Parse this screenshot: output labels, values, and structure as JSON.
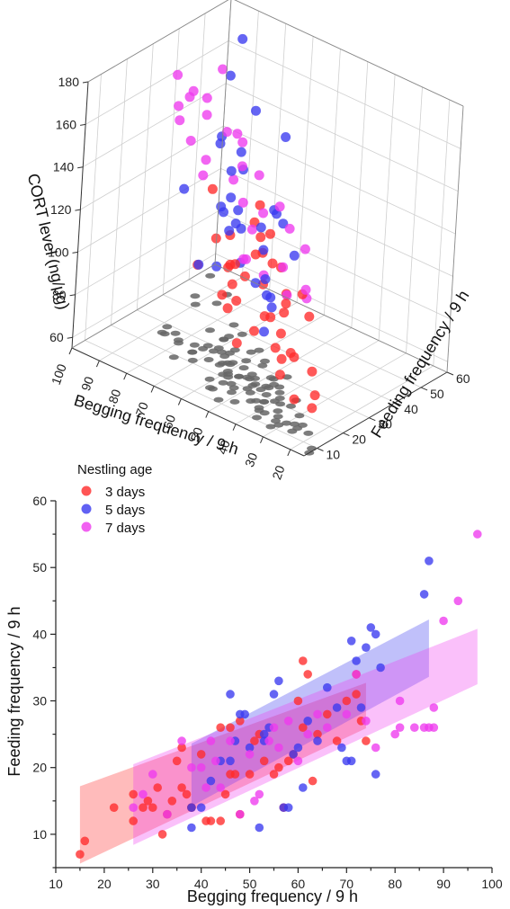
{
  "chart_data": [
    {
      "type": "scatter3d",
      "title": "",
      "xlabel": "Begging frequency / 9 h",
      "ylabel": "Feeding frequency / 9 h",
      "zlabel": "CORT level (ng/μg)",
      "xlim": [
        15,
        100
      ],
      "ylim": [
        5,
        60
      ],
      "zlim": [
        55,
        180
      ],
      "x_ticks": [
        "20",
        "30",
        "40",
        "50",
        "60",
        "70",
        "80",
        "90",
        "100"
      ],
      "y_ticks": [
        "10",
        "20",
        "30",
        "40",
        "50",
        "60"
      ],
      "z_ticks": [
        "60",
        "80",
        "100",
        "120",
        "140",
        "160",
        "180"
      ],
      "grid": true,
      "shadow_color": "#666666",
      "series": [
        {
          "name": "3 days",
          "color": "#ff2a2a",
          "points": [
            [
              15,
              7,
              76
            ],
            [
              16,
              9,
              80
            ],
            [
              22,
              14,
              84
            ],
            [
              26,
              12,
              70
            ],
            [
              30,
              14,
              88
            ],
            [
              32,
              10,
              92
            ],
            [
              33,
              13,
              96
            ],
            [
              35,
              21,
              78
            ],
            [
              38,
              14,
              100
            ],
            [
              40,
              22,
              104
            ],
            [
              44,
              26,
              90
            ],
            [
              46,
              26,
              110
            ],
            [
              48,
              19,
              84
            ],
            [
              52,
              25,
              114
            ],
            [
              55,
              19,
              94
            ],
            [
              58,
              21,
              108
            ],
            [
              60,
              30,
              120
            ],
            [
              61,
              36,
              86
            ],
            [
              62,
              34,
              124
            ],
            [
              64,
              25,
              100
            ],
            [
              66,
              28,
              98
            ],
            [
              68,
              24,
              112
            ],
            [
              70,
              30,
              80
            ],
            [
              72,
              34,
              104
            ],
            [
              73,
              27,
              130
            ],
            [
              74,
              24,
              96
            ],
            [
              26,
              16,
              106
            ],
            [
              36,
              17,
              72
            ],
            [
              42,
              18,
              120
            ],
            [
              50,
              20,
              118
            ],
            [
              56,
              23,
              102
            ],
            [
              47,
              22,
              128
            ],
            [
              31,
              12,
              112
            ],
            [
              28,
              15,
              116
            ],
            [
              34,
              15,
              82
            ],
            [
              41,
              15,
              98
            ],
            [
              45,
              16,
              132
            ],
            [
              57,
              18,
              90
            ],
            [
              63,
              26,
              92
            ],
            [
              53,
              18,
              76
            ]
          ]
        },
        {
          "name": "5 days",
          "color": "#3a3af0",
          "points": [
            [
              38,
              11,
              120
            ],
            [
              40,
              14,
              92
            ],
            [
              42,
              18,
              104
            ],
            [
              44,
              21,
              96
            ],
            [
              46,
              31,
              112
            ],
            [
              47,
              24,
              136
            ],
            [
              48,
              28,
              128
            ],
            [
              50,
              23,
              118
            ],
            [
              52,
              11,
              150
            ],
            [
              53,
              24,
              100
            ],
            [
              55,
              31,
              88
            ],
            [
              56,
              33,
              126
            ],
            [
              57,
              14,
              138
            ],
            [
              58,
              14,
              140
            ],
            [
              60,
              23,
              158
            ],
            [
              61,
              17,
              108
            ],
            [
              62,
              27,
              118
            ],
            [
              64,
              24,
              146
            ],
            [
              68,
              29,
              112
            ],
            [
              70,
              39,
              160
            ],
            [
              71,
              21,
              100
            ],
            [
              73,
              29,
              150
            ],
            [
              75,
              41,
              128
            ],
            [
              76,
              19,
              134
            ],
            [
              78,
              35,
              146
            ],
            [
              86,
              46,
              162
            ],
            [
              87,
              51,
              175
            ],
            [
              72,
              36,
              108
            ],
            [
              66,
              32,
              96
            ],
            [
              49,
              28,
              168
            ],
            [
              54,
              26,
              124
            ],
            [
              59,
              22,
              132
            ]
          ]
        },
        {
          "name": "7 days",
          "color": "#ee3aee",
          "points": [
            [
              26,
              14,
              120
            ],
            [
              30,
              19,
              110
            ],
            [
              36,
              24,
              126
            ],
            [
              38,
              20,
              106
            ],
            [
              40,
              20,
              118
            ],
            [
              42,
              24,
              132
            ],
            [
              44,
              17,
              114
            ],
            [
              46,
              24,
              140
            ],
            [
              48,
              13,
              122
            ],
            [
              50,
              22,
              136
            ],
            [
              52,
              16,
              144
            ],
            [
              54,
              24,
              150
            ],
            [
              56,
              23,
              110
            ],
            [
              58,
              27,
              120
            ],
            [
              60,
              21,
              168
            ],
            [
              62,
              26,
              148
            ],
            [
              66,
              30,
              154
            ],
            [
              70,
              28,
              158
            ],
            [
              74,
              24,
              138
            ],
            [
              76,
              27,
              142
            ],
            [
              80,
              25,
              150
            ],
            [
              81,
              26,
              172
            ],
            [
              84,
              28,
              166
            ],
            [
              86,
              26,
              162
            ],
            [
              87,
              26,
              176
            ],
            [
              88,
              29,
              152
            ],
            [
              90,
              42,
              144
            ],
            [
              93,
              45,
              148
            ],
            [
              97,
              55,
              152
            ],
            [
              72,
              34,
              130
            ]
          ]
        }
      ]
    },
    {
      "type": "scatter",
      "title": "",
      "legend_title": "Nestling age",
      "legend_position": "top-left",
      "xlabel": "Begging frequency / 9 h",
      "ylabel": "Feeding frequency / 9 h",
      "xlim": [
        10,
        100
      ],
      "ylim": [
        5,
        60
      ],
      "x_ticks": [
        "10",
        "20",
        "30",
        "40",
        "50",
        "60",
        "70",
        "80",
        "90",
        "100"
      ],
      "y_ticks": [
        "10",
        "20",
        "30",
        "40",
        "50",
        "60"
      ],
      "grid": false,
      "series": [
        {
          "name": "3 days",
          "color": "#ff2a2a",
          "x": [
            15,
            16,
            22,
            26,
            26,
            28,
            29,
            30,
            31,
            32,
            33,
            34,
            35,
            36,
            36,
            37,
            38,
            38,
            40,
            41,
            42,
            44,
            44,
            45,
            46,
            46,
            47,
            48,
            48,
            50,
            51,
            52,
            53,
            55,
            56,
            57,
            58,
            59,
            60,
            61,
            61,
            62,
            63,
            64,
            66,
            68,
            70,
            72,
            72,
            73,
            74
          ],
          "y": [
            7,
            9,
            14,
            12,
            16,
            14,
            15,
            14,
            17,
            10,
            13,
            15,
            21,
            23,
            17,
            16,
            14,
            14,
            22,
            12,
            12,
            26,
            12,
            16,
            26,
            19,
            19,
            13,
            27,
            19,
            24,
            25,
            21,
            19,
            20,
            14,
            21,
            22,
            30,
            36,
            26,
            34,
            18,
            25,
            28,
            24,
            30,
            34,
            31,
            27,
            24
          ],
          "fit": {
            "x": [
              15,
              74
            ],
            "y": [
              11.4,
              29.3
            ],
            "band_lower": [
              5.6,
              25.9
            ],
            "band_upper": [
              17.2,
              32.7
            ]
          }
        },
        {
          "name": "5 days",
          "color": "#3a3af0",
          "x": [
            38,
            38,
            40,
            42,
            44,
            46,
            46,
            47,
            48,
            49,
            50,
            52,
            53,
            53,
            54,
            55,
            56,
            57,
            58,
            59,
            60,
            61,
            62,
            64,
            66,
            68,
            69,
            70,
            71,
            71,
            72,
            73,
            74,
            75,
            76,
            76,
            77,
            86,
            87
          ],
          "y": [
            11,
            14,
            14,
            18,
            21,
            21,
            31,
            24,
            28,
            28,
            23,
            11,
            24,
            25,
            26,
            31,
            33,
            14,
            14,
            22,
            23,
            17,
            27,
            24,
            32,
            29,
            23,
            21,
            39,
            21,
            36,
            29,
            38,
            41,
            19,
            40,
            35,
            46,
            51
          ],
          "fit": {
            "x": [
              38,
              87
            ],
            "y": [
              18.9,
              37.9
            ],
            "band_lower": [
              14.2,
              33.6
            ],
            "band_upper": [
              23.6,
              42.2
            ]
          }
        },
        {
          "name": "7 days",
          "color": "#ee3aee",
          "x": [
            26,
            28,
            30,
            33,
            36,
            38,
            40,
            41,
            42,
            43,
            44,
            46,
            48,
            50,
            51,
            52,
            54,
            55,
            56,
            58,
            60,
            62,
            64,
            66,
            70,
            72,
            74,
            76,
            80,
            81,
            81,
            84,
            86,
            87,
            88,
            88,
            90,
            93,
            97
          ],
          "y": [
            14,
            16,
            19,
            13,
            24,
            20,
            20,
            17,
            24,
            21,
            17,
            24,
            13,
            22,
            15,
            16,
            24,
            26,
            23,
            27,
            21,
            25,
            28,
            26,
            28,
            34,
            27,
            23,
            25,
            26,
            30,
            26,
            26,
            26,
            26,
            29,
            42,
            45,
            55
          ],
          "fit": {
            "x": [
              26,
              97
            ],
            "y": [
              14.4,
              36.6
            ],
            "band_lower": [
              8.4,
              32.5
            ],
            "band_upper": [
              20.5,
              40.8
            ]
          }
        }
      ]
    }
  ]
}
